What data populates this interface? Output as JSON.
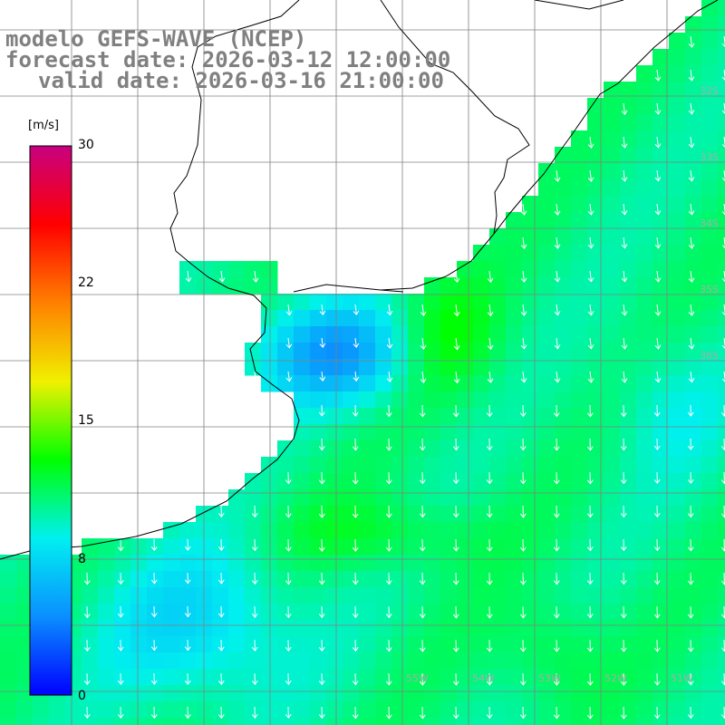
{
  "header": {
    "line1": "modelo GEFS-WAVE (NCEP)",
    "line2": "forecast date: 2026-03-12 12:00:00",
    "line3": "valid date: 2026-03-16 21:00:00"
  },
  "colorbar": {
    "unit": "[m/s]",
    "ticks": [
      "30",
      "22",
      "15",
      "8",
      "0"
    ],
    "min": 0,
    "max": 30,
    "colors": [
      "#0000ff",
      "#0a8fff",
      "#00f0f0",
      "#00ff00",
      "#f0f000",
      "#ff8000",
      "#ff0000",
      "#c80080"
    ]
  },
  "map": {
    "variable": "wind speed",
    "lat_labels": [
      "32S",
      "33S",
      "34S",
      "35S",
      "36S"
    ],
    "lon_labels": [
      "55W",
      "54W",
      "53W",
      "52W",
      "51W"
    ],
    "colors": {
      "land": "#ffffff",
      "coastline": "#000000",
      "grid": "#808080",
      "arrows": "#ffffff"
    }
  }
}
